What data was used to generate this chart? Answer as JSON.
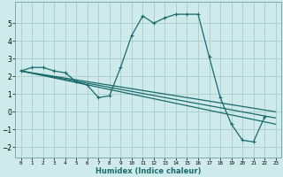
{
  "title": "",
  "xlabel": "Humidex (Indice chaleur)",
  "background_color": "#ceeaea",
  "grid_color": "#aed0d0",
  "line_color": "#1a6b6b",
  "x_ticks": [
    0,
    1,
    2,
    3,
    4,
    5,
    6,
    7,
    8,
    9,
    10,
    11,
    12,
    13,
    14,
    15,
    16,
    17,
    18,
    19,
    20,
    21,
    22,
    23
  ],
  "ylim": [
    -2.6,
    6.2
  ],
  "xlim": [
    -0.5,
    23.5
  ],
  "y_ticks": [
    -2,
    -1,
    0,
    1,
    2,
    3,
    4,
    5
  ],
  "series": [
    {
      "x": [
        0,
        1,
        2,
        3,
        4,
        5,
        6,
        7,
        8,
        9,
        10,
        11,
        12,
        13,
        14,
        15,
        16,
        17,
        18,
        19,
        20,
        21,
        22
      ],
      "y": [
        2.3,
        2.5,
        2.5,
        2.3,
        2.2,
        1.7,
        1.5,
        0.8,
        0.9,
        2.5,
        4.3,
        5.4,
        5.0,
        5.3,
        5.5,
        5.5,
        5.5,
        3.1,
        0.8,
        -0.7,
        -1.6,
        -1.7,
        -0.3
      ]
    },
    {
      "x": [
        0,
        23
      ],
      "y": [
        2.3,
        0.0
      ]
    },
    {
      "x": [
        0,
        23
      ],
      "y": [
        2.3,
        -0.35
      ]
    },
    {
      "x": [
        0,
        23
      ],
      "y": [
        2.3,
        -0.7
      ]
    }
  ]
}
